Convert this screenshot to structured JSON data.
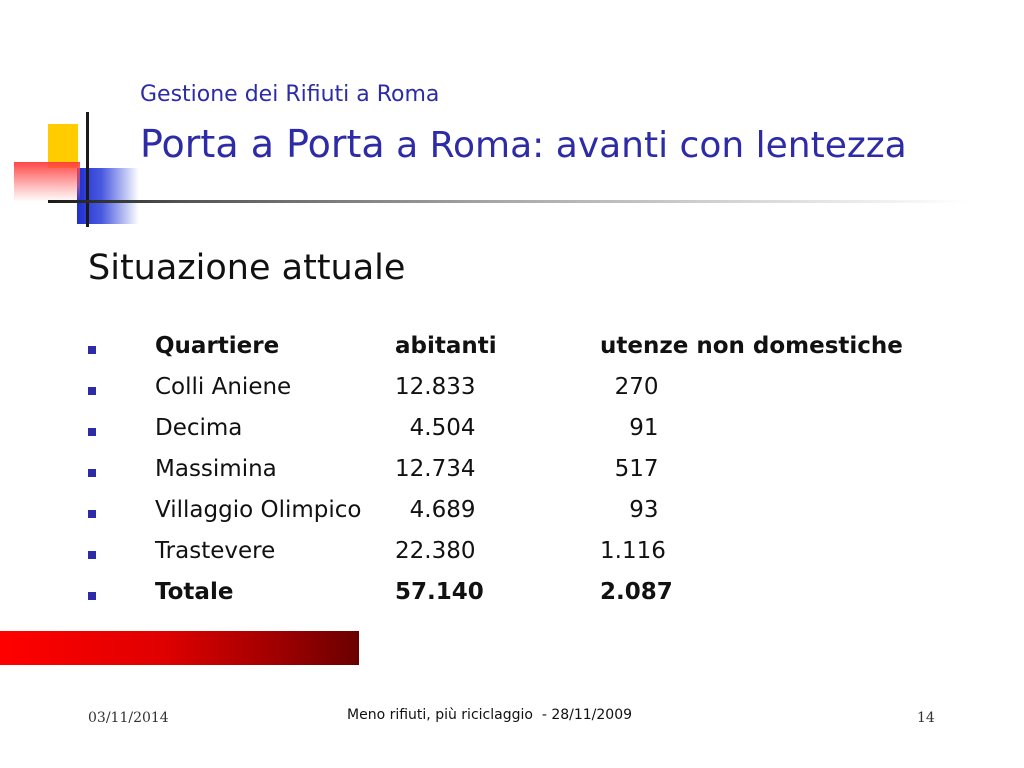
{
  "header": {
    "subtitle": "Gestione dei Rifiuti a Roma",
    "title_strong": "Porta a Porta",
    "title_rest": " a Roma: avanti con lentezza"
  },
  "section_title": "Situazione attuale",
  "table": {
    "headers": [
      "Quartiere",
      "abitanti",
      "utenze non domestiche"
    ],
    "rows": [
      {
        "quartiere": "Colli Aniene",
        "abitanti": "12.833",
        "utenze": "  270"
      },
      {
        "quartiere": "Decima",
        "abitanti": "  4.504",
        "utenze": "    91"
      },
      {
        "quartiere": "Massimina",
        "abitanti": "12.734",
        "utenze": "  517"
      },
      {
        "quartiere": "Villaggio Olimpico",
        "abitanti": "  4.689",
        "utenze": "    93"
      },
      {
        "quartiere": "Trastevere",
        "abitanti": "22.380",
        "utenze": "1.116"
      }
    ],
    "total": {
      "quartiere": "Totale",
      "abitanti": "57.140",
      "utenze": "2.087"
    }
  },
  "footer": {
    "date": "03/11/2014",
    "center": "Meno rifiuti, più riciclaggio  - 28/11/2009",
    "page": "14"
  },
  "colors": {
    "title_blue": "#2d2ba6",
    "accent_yellow": "#ffcc00",
    "accent_red": "#ff0000",
    "accent_blue": "#1f2fd0"
  }
}
